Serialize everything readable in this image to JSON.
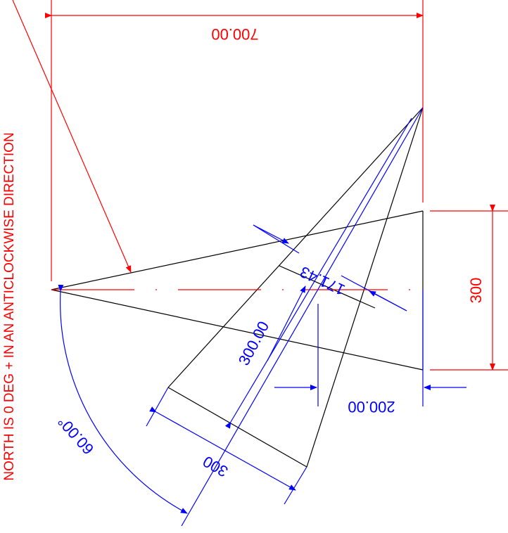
{
  "colors": {
    "geometry": "#000000",
    "red_dimension": "#ff0000",
    "blue_dimension": "#0000ff"
  },
  "note": "NORTH IS 0 DEG + IN AN ANTICLOCKWISE DIRECTION",
  "dimensions": {
    "top_width": "700.00",
    "right_height": "300",
    "bottom_width": "200.00",
    "apex_length": "300.00",
    "inner_width": "171.43",
    "base_width": "300",
    "angle": "60.00°"
  }
}
